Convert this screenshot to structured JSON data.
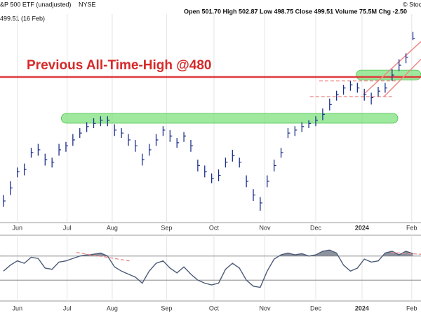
{
  "chart_data": {
    "type": "ohlc",
    "title": "&P 500 ETF (unadjusted)",
    "exchange": "NYSE",
    "quote": "Open 501.70  High 502.87  Low 498.75  Close 499.51  Volume 75.5M  Chg -2.50",
    "last_label": "499.51 (16 Feb)",
    "source": "© Stock",
    "x": [
      1.5,
      4.5,
      7.5,
      10.5,
      13.5,
      16.5,
      19.5,
      22.5,
      25.5,
      28.5,
      31.5,
      34.5,
      37.5,
      40.5,
      43.5,
      46.5,
      49.5,
      52.5,
      55.5,
      58.5,
      61.5,
      64.5,
      67.5,
      70.5,
      73.5,
      76.5,
      79.5,
      82.5,
      85.5,
      88.5,
      91.5,
      94.5,
      97.5,
      100.5,
      103.5,
      106.5,
      109.5,
      112.5,
      115.5,
      118.5,
      121.5,
      124.5,
      127.5,
      130.5,
      133.5,
      136.5,
      139.5,
      142.5,
      145.5,
      148.5,
      151.5,
      154.5,
      157.5,
      160.5,
      163.5,
      166.5,
      169.5,
      172.5,
      175.5,
      178.5
    ],
    "high": [
      420,
      427,
      434,
      436,
      444,
      446,
      441,
      439,
      446,
      447,
      451,
      454,
      457,
      459,
      460,
      460,
      456,
      454,
      451,
      448,
      441,
      446,
      451,
      455,
      453,
      449,
      452,
      448,
      438,
      435,
      431,
      433,
      439,
      443,
      439,
      430,
      423,
      419,
      430,
      438,
      444,
      454,
      455,
      457,
      458,
      460,
      464,
      469,
      473,
      476,
      478,
      477,
      474,
      472,
      475,
      477,
      484,
      489,
      492,
      502.87
    ],
    "low": [
      414,
      420,
      429,
      430,
      439,
      440,
      435,
      434,
      440,
      442,
      445,
      449,
      452,
      454,
      455,
      455,
      450,
      449,
      445,
      442,
      435,
      440,
      445,
      450,
      447,
      444,
      447,
      442,
      432,
      429,
      426,
      427,
      434,
      437,
      434,
      424,
      417,
      412,
      424,
      432,
      439,
      449,
      450,
      452,
      454,
      455,
      458,
      463,
      468,
      471,
      473,
      472,
      468,
      466,
      470,
      472,
      478,
      483,
      487,
      498.75
    ],
    "close": [
      417,
      423.6,
      431.8,
      433,
      441.6,
      443,
      438,
      436.7,
      443,
      445,
      448,
      451.5,
      454.8,
      456.4,
      458,
      458,
      453,
      451.5,
      448,
      445,
      438,
      443,
      448,
      453,
      450,
      446.6,
      450,
      445,
      435,
      431.8,
      428.5,
      430,
      436.7,
      440,
      436.7,
      427,
      420,
      416,
      427,
      435,
      441.6,
      451.5,
      453,
      454.8,
      456.4,
      458,
      461,
      466,
      471,
      474.4,
      476,
      474.4,
      471,
      469.5,
      472.8,
      474.4,
      481,
      486,
      490,
      499.51
    ],
    "color": "#1c2f8c",
    "xlim": [
      0,
      182
    ],
    "ylim": [
      406,
      512
    ],
    "xticks": [
      {
        "value": 7.5,
        "label": "Jun"
      },
      {
        "value": 29,
        "label": "Jul"
      },
      {
        "value": 48.5,
        "label": "Aug"
      },
      {
        "value": 72,
        "label": "Sep"
      },
      {
        "value": 92.5,
        "label": "Oct"
      },
      {
        "value": 114.5,
        "label": "Nov"
      },
      {
        "value": 136.5,
        "label": "Dec"
      },
      {
        "value": 156.5,
        "label": "2024"
      },
      {
        "value": 178,
        "label": "Feb"
      }
    ],
    "grid": true,
    "annotation": {
      "text": "Previous All-Time-High @480",
      "value": 480,
      "color": "#e03c3c"
    },
    "zones": [
      {
        "y": 459,
        "x": [
          26.5,
          172
        ]
      },
      {
        "y": 481,
        "x": [
          154,
          182
        ]
      }
    ],
    "zone_color": "#7ee27e",
    "dashed_levels": [
      {
        "y": 478,
        "x": [
          138,
          172
        ]
      },
      {
        "y": 470,
        "x": [
          134,
          170
        ]
      }
    ],
    "trendlines": [
      [
        [
          157,
          471
        ],
        [
          182,
          498
        ]
      ],
      [
        [
          166,
          470
        ],
        [
          182,
          489
        ]
      ]
    ],
    "trend_color": "#f08a8a",
    "indicator": {
      "values": [
        45,
        55,
        62,
        58,
        68,
        66,
        50,
        48,
        60,
        62,
        66,
        70,
        72,
        73,
        75,
        70,
        52,
        45,
        40,
        35,
        25,
        45,
        58,
        62,
        50,
        42,
        52,
        40,
        30,
        25,
        22,
        25,
        48,
        58,
        50,
        30,
        20,
        18,
        45,
        65,
        72,
        75,
        72,
        74,
        70,
        72,
        78,
        80,
        75,
        55,
        45,
        50,
        65,
        60,
        62,
        75,
        78,
        72,
        78,
        74
      ],
      "ylim": [
        0,
        100
      ],
      "levels": [
        70,
        30
      ],
      "color": "#4b5a78",
      "fill": "#8d939e",
      "trendlines": [
        [
          [
            33,
            76
          ],
          [
            56,
            62
          ]
        ],
        [
          [
            169,
            76
          ],
          [
            182,
            73
          ]
        ]
      ]
    }
  }
}
